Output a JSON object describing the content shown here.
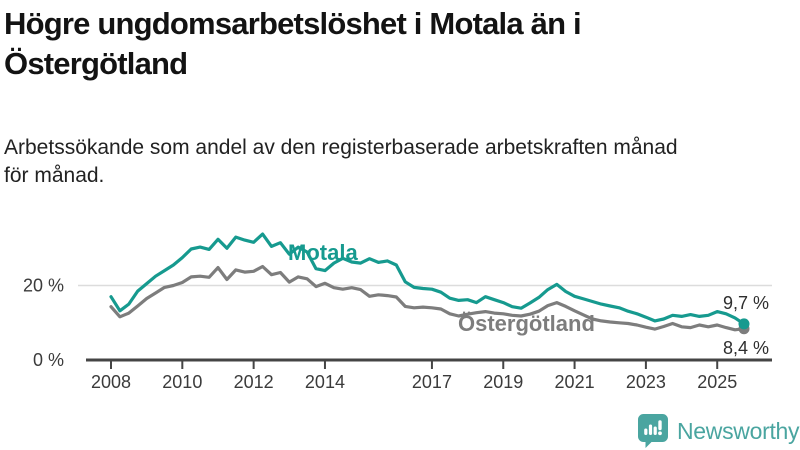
{
  "header": {
    "title_line1": "Högre ungdomsarbetslöshet i Motala än i",
    "title_line2": "Östergötland",
    "subtitle_line1": "Arbetssökande som andel av den registerbaserade arbetskraften månad",
    "subtitle_line2": "för månad."
  },
  "chart_data": {
    "type": "line",
    "title": "Högre ungdomsarbetslöshet i Motala än i Östergötland",
    "subtitle": "Arbetssökande som andel av den registerbaserade arbetskraften månad för månad.",
    "grid": "single horizontal gridline at 20 %",
    "legend_position": "inline labels next to lines",
    "x_axis": {
      "tick_labels": [
        "2008",
        "2010",
        "2012",
        "2014",
        "2017",
        "2019",
        "2021",
        "2023",
        "2025"
      ],
      "tick_years": [
        2008,
        2010,
        2012,
        2014,
        2017,
        2019,
        2021,
        2023,
        2025
      ],
      "range": [
        2008,
        2025.75
      ]
    },
    "y_axis": {
      "ticks": [
        {
          "value": 20,
          "label": "20 %"
        },
        {
          "value": 0,
          "label": "0 %"
        }
      ],
      "range": [
        0,
        36
      ],
      "unit": "%"
    },
    "x": [
      2008.0,
      2008.25,
      2008.5,
      2008.75,
      2009.0,
      2009.25,
      2009.5,
      2009.75,
      2010.0,
      2010.25,
      2010.5,
      2010.75,
      2011.0,
      2011.25,
      2011.5,
      2011.75,
      2012.0,
      2012.25,
      2012.5,
      2012.75,
      2013.0,
      2013.25,
      2013.5,
      2013.75,
      2014.0,
      2014.25,
      2014.5,
      2014.75,
      2015.0,
      2015.25,
      2015.5,
      2015.75,
      2016.0,
      2016.25,
      2016.5,
      2016.75,
      2017.0,
      2017.25,
      2017.5,
      2017.75,
      2018.0,
      2018.25,
      2018.5,
      2018.75,
      2019.0,
      2019.25,
      2019.5,
      2019.75,
      2020.0,
      2020.25,
      2020.5,
      2020.75,
      2021.0,
      2021.25,
      2021.5,
      2021.75,
      2022.0,
      2022.25,
      2022.5,
      2022.75,
      2023.0,
      2023.25,
      2023.5,
      2023.75,
      2024.0,
      2024.25,
      2024.5,
      2024.75,
      2025.0,
      2025.25,
      2025.5,
      2025.75
    ],
    "series": [
      {
        "name": "Motala",
        "color": "#169a8f",
        "end_label": "9,7 %",
        "end_value": 9.7,
        "values": [
          17.0,
          13.2,
          15.0,
          18.5,
          20.5,
          22.5,
          24.0,
          25.5,
          27.5,
          29.8,
          30.3,
          29.7,
          32.4,
          30.0,
          33.0,
          32.2,
          31.6,
          33.8,
          30.5,
          31.5,
          28.4,
          30.3,
          29.0,
          24.5,
          24.0,
          26.0,
          27.3,
          26.3,
          26.0,
          27.2,
          26.2,
          26.6,
          25.5,
          21.0,
          19.5,
          19.2,
          19.0,
          18.2,
          16.6,
          16.0,
          16.2,
          15.4,
          17.0,
          16.2,
          15.4,
          14.3,
          13.9,
          15.3,
          16.8,
          18.9,
          20.3,
          18.4,
          17.1,
          16.4,
          15.7,
          15.0,
          14.5,
          14.0,
          13.1,
          12.4,
          11.5,
          10.5,
          11.0,
          12.0,
          11.7,
          12.2,
          11.7,
          12.0,
          13.0,
          12.4,
          11.3,
          9.7
        ]
      },
      {
        "name": "Östergötland",
        "color": "#7d7d7d",
        "end_label": "8,4 %",
        "end_value": 8.4,
        "values": [
          14.3,
          11.6,
          12.6,
          14.5,
          16.5,
          18.0,
          19.5,
          20.0,
          20.8,
          22.3,
          22.5,
          22.2,
          24.8,
          21.6,
          24.2,
          23.6,
          23.8,
          25.1,
          22.9,
          23.5,
          20.9,
          22.3,
          21.8,
          19.7,
          20.6,
          19.4,
          19.0,
          19.4,
          18.9,
          17.1,
          17.5,
          17.3,
          16.9,
          14.4,
          14.0,
          14.2,
          14.0,
          13.7,
          12.4,
          11.8,
          12.3,
          12.7,
          13.0,
          12.6,
          12.4,
          12.0,
          11.8,
          12.3,
          13.1,
          14.6,
          15.4,
          14.4,
          13.2,
          12.1,
          11.0,
          10.5,
          10.2,
          10.0,
          9.8,
          9.4,
          8.8,
          8.3,
          9.0,
          9.8,
          8.9,
          8.7,
          9.4,
          8.9,
          9.4,
          8.7,
          8.1,
          8.4
        ]
      }
    ]
  },
  "footer": {
    "brand": "Newsworthy"
  },
  "colors": {
    "accent": "#169a8f",
    "muted_series": "#7d7d7d",
    "axis": "#454545",
    "gridline": "#dcdcdc",
    "title_text": "#131313",
    "body_text": "#222222",
    "brand": "#4aa5a0"
  }
}
